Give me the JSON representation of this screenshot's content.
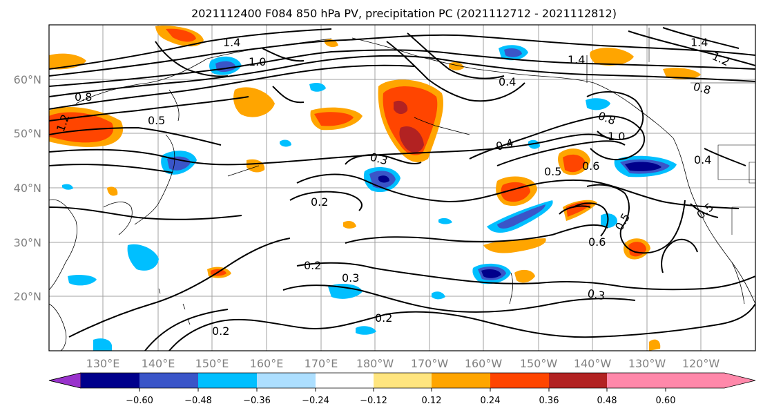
{
  "title": "2021112400 F084 850 hPa PV, precipitation PC (2021112712 - 2021112812)",
  "lat_labels": [
    "60°N",
    "50°N",
    "40°N",
    "30°N",
    "20°N"
  ],
  "lon_labels": [
    "130°E",
    "140°E",
    "150°E",
    "160°E",
    "170°E",
    "180°W",
    "170°W",
    "160°W",
    "150°W",
    "140°W",
    "130°W",
    "120°W"
  ],
  "contour_labels": [
    "1.4",
    "1.0",
    "1.2",
    "0.8",
    "0.5",
    "0.2",
    "0.3",
    "0.4",
    "0.6",
    "0.5",
    "1.0",
    "1.4",
    "0.8",
    "0.4",
    "0.2",
    "0.3",
    "0.3",
    "0.6",
    "0.5",
    "0.2",
    "0.4",
    "0.8",
    "0.2",
    "1.4",
    "1.2",
    "0.5"
  ],
  "colorbar": {
    "ticks": [
      "−0.60",
      "−0.48",
      "−0.36",
      "−0.24",
      "−0.12",
      "0.12",
      "0.24",
      "0.36",
      "0.48",
      "0.60"
    ],
    "colors": [
      "#9932CC",
      "#00008B",
      "#3A55C8",
      "#00BFFF",
      "#ADDFFF",
      "#FFFFFF",
      "#FFE57F",
      "#FFA500",
      "#FF4500",
      "#B22222",
      "#FF88AA"
    ]
  }
}
